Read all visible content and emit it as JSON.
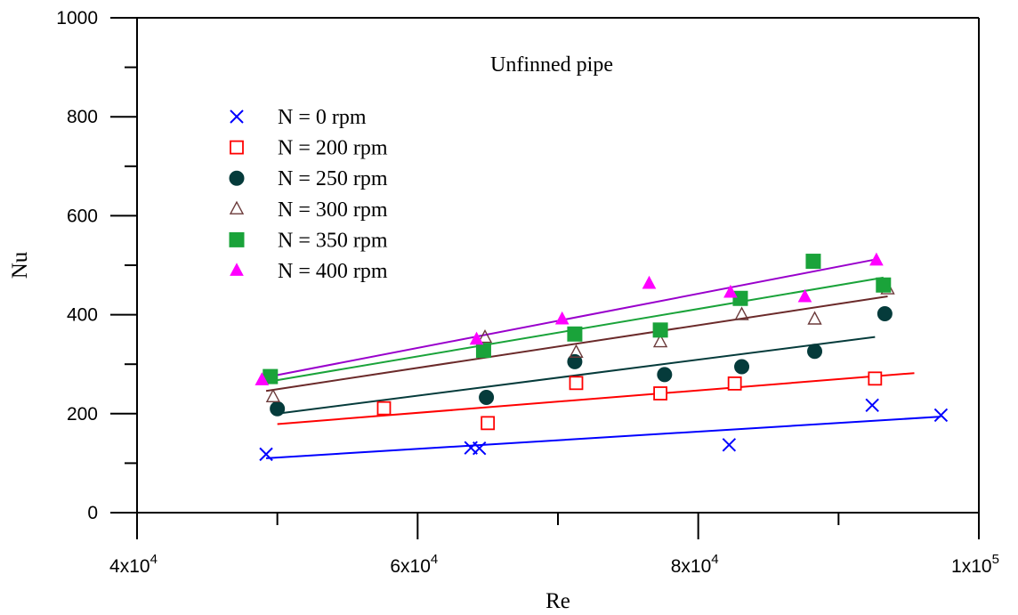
{
  "chart_data": {
    "type": "scatter",
    "title": "",
    "annotation": "Unfinned pipe",
    "xlabel": "Re",
    "ylabel": "Nu",
    "xlim": [
      40000,
      100000
    ],
    "ylim": [
      0,
      1000
    ],
    "x_ticks": [
      40000,
      60000,
      80000,
      100000
    ],
    "x_tick_labels": [
      "4x10",
      "6x10",
      "8x10",
      "1x10"
    ],
    "x_tick_exponents": [
      "4",
      "4",
      "4",
      "5"
    ],
    "x_minor_ticks": [
      50000,
      70000,
      90000
    ],
    "y_ticks": [
      0,
      200,
      400,
      600,
      800,
      1000
    ],
    "y_tick_labels": [
      "0",
      "200",
      "400",
      "600",
      "800",
      "1000"
    ],
    "y_minor_ticks": [
      100,
      300,
      500,
      700,
      900
    ],
    "grid": false,
    "legend_position": "top-left",
    "series": [
      {
        "name": "N = 0 rpm",
        "marker": "x",
        "color": "#0000ff",
        "line_color": "#0000ff",
        "x": [
          49200,
          63800,
          64400,
          82200,
          92400,
          97300
        ],
        "y": [
          118,
          131,
          130,
          137,
          217,
          197
        ],
        "fit": [
          [
            49200,
            110
          ],
          [
            97300,
            194
          ]
        ]
      },
      {
        "name": "N = 200 rpm",
        "marker": "square-open",
        "color": "#ff0000",
        "line_color": "#ff0000",
        "x": [
          57600,
          65000,
          71300,
          77300,
          82600,
          92600
        ],
        "y": [
          211,
          181,
          262,
          241,
          261,
          271
        ],
        "fit": [
          [
            50000,
            179
          ],
          [
            95400,
            282
          ]
        ]
      },
      {
        "name": "N = 250 rpm",
        "marker": "circle",
        "color": "#053b3b",
        "line_color": "#053b3b",
        "x": [
          50000,
          64900,
          71200,
          77600,
          83100,
          88300,
          93300
        ],
        "y": [
          210,
          233,
          305,
          279,
          295,
          326,
          402
        ],
        "fit": [
          [
            50000,
            200
          ],
          [
            92600,
            355
          ]
        ]
      },
      {
        "name": "N = 300 rpm",
        "marker": "triangle-open",
        "color": "#6b3a3a",
        "line_color": "#6b2a2a",
        "x": [
          49700,
          64800,
          71300,
          77300,
          83100,
          88300,
          93500
        ],
        "y": [
          234,
          354,
          324,
          345,
          400,
          391,
          452
        ],
        "fit": [
          [
            49200,
            246
          ],
          [
            93500,
            437
          ]
        ]
      },
      {
        "name": "N = 350 rpm",
        "marker": "square",
        "color": "#1aa33a",
        "line_color": "#1aa33a",
        "x": [
          49500,
          64700,
          71200,
          77300,
          83000,
          88200,
          93200
        ],
        "y": [
          275,
          328,
          361,
          369,
          433,
          508,
          460
        ],
        "fit": [
          [
            49200,
            264
          ],
          [
            93200,
            475
          ]
        ]
      },
      {
        "name": "N = 400 rpm",
        "marker": "triangle",
        "color": "#ff00ff",
        "line_color": "#9900cc",
        "x": [
          48900,
          64200,
          70300,
          76500,
          82300,
          87600,
          92700
        ],
        "y": [
          268,
          350,
          391,
          463,
          445,
          436,
          510
        ],
        "fit": [
          [
            48900,
            272
          ],
          [
            92700,
            512
          ]
        ]
      }
    ]
  }
}
